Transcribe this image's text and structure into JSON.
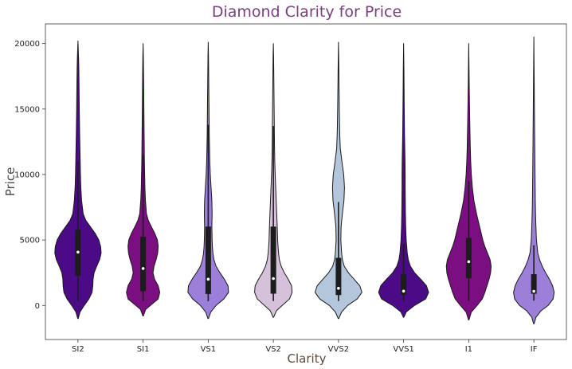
{
  "colors": {
    "title": "#7b3f80",
    "axis_label": "#5c4a3a",
    "axis_label_y": "#4a4a4a",
    "outline": "#1a1a1a",
    "box": "#1c1c1c",
    "median": "#ffffff"
  },
  "chart_data": {
    "type": "violin",
    "title": "Diamond Clarity for Price",
    "xlabel": "Clarity",
    "ylabel": "Price",
    "ylim": [
      -2600,
      21500
    ],
    "yticks": [
      0,
      5000,
      10000,
      15000,
      20000
    ],
    "grid": false,
    "categories": [
      "SI2",
      "SI1",
      "VS1",
      "VS2",
      "VVS2",
      "VVS1",
      "I1",
      "IF"
    ],
    "series": [
      {
        "category": "SI2",
        "color": "#4b0b86",
        "min": 326,
        "q1": 2264,
        "median": 4073,
        "q3": 5777,
        "max": 18804,
        "whisker_low": 326,
        "whisker_high": 11000,
        "kde_min": -1000,
        "kde_max": 20200,
        "profile": [
          [
            -1000,
            0.01
          ],
          [
            -500,
            0.08
          ],
          [
            0,
            0.24
          ],
          [
            500,
            0.42
          ],
          [
            1000,
            0.54
          ],
          [
            1500,
            0.57
          ],
          [
            2000,
            0.58
          ],
          [
            2500,
            0.62
          ],
          [
            3000,
            0.72
          ],
          [
            3500,
            0.83
          ],
          [
            4000,
            0.89
          ],
          [
            4500,
            0.87
          ],
          [
            5000,
            0.8
          ],
          [
            5500,
            0.66
          ],
          [
            6000,
            0.48
          ],
          [
            6500,
            0.3
          ],
          [
            7000,
            0.2
          ],
          [
            8000,
            0.14
          ],
          [
            9000,
            0.11
          ],
          [
            10000,
            0.095
          ],
          [
            11000,
            0.085
          ],
          [
            12000,
            0.075
          ],
          [
            13000,
            0.065
          ],
          [
            14000,
            0.058
          ],
          [
            15000,
            0.05
          ],
          [
            16000,
            0.045
          ],
          [
            17000,
            0.04
          ],
          [
            18000,
            0.033
          ],
          [
            18800,
            0.025
          ],
          [
            19500,
            0.012
          ],
          [
            20200,
            0.0
          ]
        ]
      },
      {
        "category": "SI1",
        "color": "#7b0f82",
        "min": 326,
        "q1": 1089,
        "median": 2822,
        "q3": 5250,
        "max": 18818,
        "whisker_low": 326,
        "whisker_high": 11500,
        "kde_min": -800,
        "kde_max": 20000,
        "profile": [
          [
            -800,
            0.01
          ],
          [
            -300,
            0.1
          ],
          [
            0,
            0.28
          ],
          [
            500,
            0.58
          ],
          [
            1000,
            0.64
          ],
          [
            1500,
            0.58
          ],
          [
            2000,
            0.44
          ],
          [
            2500,
            0.38
          ],
          [
            3000,
            0.42
          ],
          [
            3500,
            0.5
          ],
          [
            4000,
            0.56
          ],
          [
            4500,
            0.58
          ],
          [
            5000,
            0.55
          ],
          [
            5500,
            0.45
          ],
          [
            6000,
            0.32
          ],
          [
            6500,
            0.2
          ],
          [
            7000,
            0.13
          ],
          [
            8000,
            0.09
          ],
          [
            9000,
            0.07
          ],
          [
            10000,
            0.06
          ],
          [
            11000,
            0.05
          ],
          [
            12000,
            0.045
          ],
          [
            13000,
            0.04
          ],
          [
            14000,
            0.035
          ],
          [
            15000,
            0.03
          ],
          [
            16000,
            0.026
          ],
          [
            17000,
            0.022
          ],
          [
            18000,
            0.016
          ],
          [
            19000,
            0.01
          ],
          [
            20000,
            0.0
          ]
        ]
      },
      {
        "category": "VS1",
        "color": "#9b7fd8",
        "min": 327,
        "q1": 876,
        "median": 2005,
        "q3": 6023,
        "max": 18795,
        "whisker_low": 327,
        "whisker_high": 13800,
        "kde_min": -1000,
        "kde_max": 20100,
        "profile": [
          [
            -1000,
            0.01
          ],
          [
            -500,
            0.1
          ],
          [
            0,
            0.3
          ],
          [
            500,
            0.6
          ],
          [
            1000,
            0.78
          ],
          [
            1500,
            0.76
          ],
          [
            2000,
            0.62
          ],
          [
            2500,
            0.45
          ],
          [
            3000,
            0.3
          ],
          [
            3500,
            0.22
          ],
          [
            4000,
            0.18
          ],
          [
            4500,
            0.16
          ],
          [
            5000,
            0.15
          ],
          [
            6000,
            0.14
          ],
          [
            7000,
            0.15
          ],
          [
            8000,
            0.14
          ],
          [
            9000,
            0.11
          ],
          [
            10000,
            0.08
          ],
          [
            11000,
            0.06
          ],
          [
            12000,
            0.05
          ],
          [
            13000,
            0.04
          ],
          [
            14000,
            0.035
          ],
          [
            15000,
            0.03
          ],
          [
            16000,
            0.025
          ],
          [
            17000,
            0.02
          ],
          [
            18000,
            0.015
          ],
          [
            19000,
            0.01
          ],
          [
            20100,
            0.0
          ]
        ]
      },
      {
        "category": "VS2",
        "color": "#d6c1da",
        "min": 334,
        "q1": 900,
        "median": 2054,
        "q3": 6023,
        "max": 18823,
        "whisker_low": 334,
        "whisker_high": 13700,
        "kde_min": -900,
        "kde_max": 20000,
        "profile": [
          [
            -900,
            0.01
          ],
          [
            -400,
            0.12
          ],
          [
            0,
            0.34
          ],
          [
            500,
            0.62
          ],
          [
            1000,
            0.72
          ],
          [
            1500,
            0.7
          ],
          [
            2000,
            0.57
          ],
          [
            2500,
            0.42
          ],
          [
            3000,
            0.3
          ],
          [
            3500,
            0.23
          ],
          [
            4000,
            0.2
          ],
          [
            4500,
            0.18
          ],
          [
            5000,
            0.165
          ],
          [
            6000,
            0.15
          ],
          [
            7000,
            0.13
          ],
          [
            8000,
            0.11
          ],
          [
            9000,
            0.09
          ],
          [
            10000,
            0.07
          ],
          [
            11000,
            0.055
          ],
          [
            12000,
            0.045
          ],
          [
            13000,
            0.04
          ],
          [
            14000,
            0.035
          ],
          [
            15000,
            0.03
          ],
          [
            16000,
            0.025
          ],
          [
            17000,
            0.02
          ],
          [
            18000,
            0.015
          ],
          [
            19000,
            0.01
          ],
          [
            20000,
            0.0
          ]
        ]
      },
      {
        "category": "VVS2",
        "color": "#b4c6dc",
        "min": 336,
        "q1": 794,
        "median": 1311,
        "q3": 3638,
        "max": 18768,
        "whisker_low": 336,
        "whisker_high": 7900,
        "kde_min": -1000,
        "kde_max": 20100,
        "profile": [
          [
            -1000,
            0.01
          ],
          [
            -500,
            0.12
          ],
          [
            0,
            0.35
          ],
          [
            500,
            0.72
          ],
          [
            1000,
            0.9
          ],
          [
            1500,
            0.82
          ],
          [
            2000,
            0.6
          ],
          [
            2500,
            0.38
          ],
          [
            3000,
            0.22
          ],
          [
            3500,
            0.15
          ],
          [
            4000,
            0.12
          ],
          [
            5000,
            0.09
          ],
          [
            6000,
            0.1
          ],
          [
            7000,
            0.15
          ],
          [
            8000,
            0.21
          ],
          [
            9000,
            0.23
          ],
          [
            10000,
            0.2
          ],
          [
            11000,
            0.13
          ],
          [
            12000,
            0.07
          ],
          [
            13000,
            0.05
          ],
          [
            14000,
            0.04
          ],
          [
            15000,
            0.032
          ],
          [
            16000,
            0.026
          ],
          [
            17000,
            0.02
          ],
          [
            18000,
            0.015
          ],
          [
            19000,
            0.008
          ],
          [
            20100,
            0.0
          ]
        ]
      },
      {
        "category": "VVS1",
        "color": "#4b0b86",
        "min": 336,
        "q1": 816,
        "median": 1093,
        "q3": 2379,
        "max": 18777,
        "whisker_low": 336,
        "whisker_high": 4700,
        "kde_min": -900,
        "kde_max": 20000,
        "profile": [
          [
            -900,
            0.01
          ],
          [
            -500,
            0.1
          ],
          [
            0,
            0.42
          ],
          [
            500,
            0.85
          ],
          [
            1000,
            0.96
          ],
          [
            1500,
            0.88
          ],
          [
            2000,
            0.66
          ],
          [
            2500,
            0.42
          ],
          [
            3000,
            0.26
          ],
          [
            3500,
            0.18
          ],
          [
            4000,
            0.14
          ],
          [
            5000,
            0.1
          ],
          [
            6000,
            0.08
          ],
          [
            7000,
            0.07
          ],
          [
            8000,
            0.065
          ],
          [
            9000,
            0.06
          ],
          [
            10000,
            0.06
          ],
          [
            11000,
            0.055
          ],
          [
            12000,
            0.045
          ],
          [
            13000,
            0.035
          ],
          [
            14000,
            0.03
          ],
          [
            15000,
            0.025
          ],
          [
            16000,
            0.02
          ],
          [
            17000,
            0.016
          ],
          [
            18000,
            0.012
          ],
          [
            19000,
            0.006
          ],
          [
            20000,
            0.0
          ]
        ]
      },
      {
        "category": "I1",
        "color": "#7b0f82",
        "min": 345,
        "q1": 2080,
        "median": 3344,
        "q3": 5161,
        "max": 18531,
        "whisker_low": 345,
        "whisker_high": 9500,
        "kde_min": -1100,
        "kde_max": 20000,
        "profile": [
          [
            -1100,
            0.01
          ],
          [
            -500,
            0.1
          ],
          [
            0,
            0.32
          ],
          [
            500,
            0.52
          ],
          [
            1000,
            0.62
          ],
          [
            1500,
            0.7
          ],
          [
            2000,
            0.78
          ],
          [
            2500,
            0.84
          ],
          [
            3000,
            0.86
          ],
          [
            3500,
            0.82
          ],
          [
            4000,
            0.72
          ],
          [
            4500,
            0.62
          ],
          [
            5000,
            0.54
          ],
          [
            5500,
            0.48
          ],
          [
            6000,
            0.42
          ],
          [
            7000,
            0.3
          ],
          [
            8000,
            0.2
          ],
          [
            9000,
            0.14
          ],
          [
            10000,
            0.1
          ],
          [
            11000,
            0.075
          ],
          [
            12000,
            0.06
          ],
          [
            13000,
            0.05
          ],
          [
            14000,
            0.04
          ],
          [
            15000,
            0.032
          ],
          [
            16000,
            0.025
          ],
          [
            17000,
            0.018
          ],
          [
            18000,
            0.012
          ],
          [
            19000,
            0.006
          ],
          [
            20000,
            0.0
          ]
        ]
      },
      {
        "category": "IF",
        "color": "#9b7fd8",
        "min": 369,
        "q1": 895,
        "median": 1080,
        "q3": 2388,
        "max": 18806,
        "whisker_low": 369,
        "whisker_high": 4600,
        "kde_min": -1400,
        "kde_max": 20500,
        "profile": [
          [
            -1400,
            0.01
          ],
          [
            -900,
            0.08
          ],
          [
            -400,
            0.28
          ],
          [
            0,
            0.55
          ],
          [
            500,
            0.74
          ],
          [
            1000,
            0.78
          ],
          [
            1500,
            0.72
          ],
          [
            2000,
            0.6
          ],
          [
            2500,
            0.45
          ],
          [
            3000,
            0.32
          ],
          [
            3500,
            0.22
          ],
          [
            4000,
            0.15
          ],
          [
            5000,
            0.1
          ],
          [
            6000,
            0.08
          ],
          [
            7000,
            0.065
          ],
          [
            8000,
            0.055
          ],
          [
            9000,
            0.05
          ],
          [
            10000,
            0.045
          ],
          [
            11000,
            0.04
          ],
          [
            12000,
            0.035
          ],
          [
            13000,
            0.03
          ],
          [
            14000,
            0.026
          ],
          [
            15000,
            0.022
          ],
          [
            16000,
            0.018
          ],
          [
            17000,
            0.014
          ],
          [
            18000,
            0.01
          ],
          [
            19000,
            0.006
          ],
          [
            20500,
            0.0
          ]
        ]
      }
    ]
  }
}
